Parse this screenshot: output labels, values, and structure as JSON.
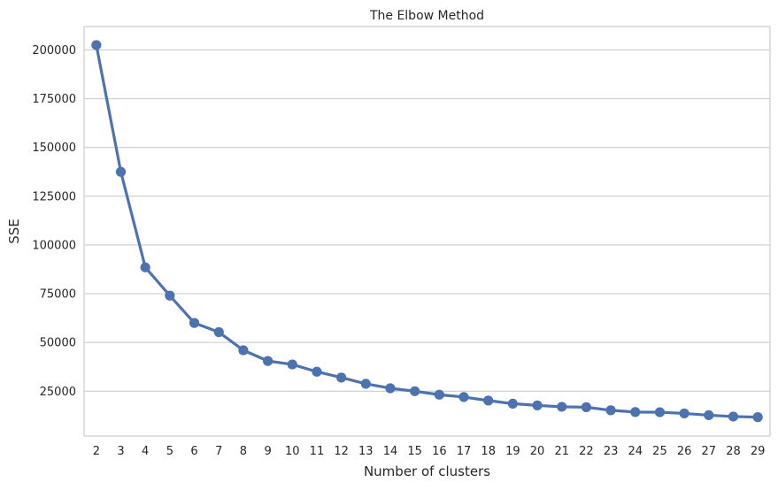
{
  "chart_data": {
    "type": "line",
    "title": "The Elbow Method",
    "xlabel": "Number of clusters",
    "ylabel": "SSE",
    "x": [
      2,
      3,
      4,
      5,
      6,
      7,
      8,
      9,
      10,
      11,
      12,
      13,
      14,
      15,
      16,
      17,
      18,
      19,
      20,
      21,
      22,
      23,
      24,
      25,
      26,
      27,
      28,
      29
    ],
    "y": [
      202500,
      137500,
      88500,
      74000,
      60000,
      55300,
      46000,
      40500,
      38700,
      35000,
      32000,
      28800,
      26500,
      25000,
      23200,
      22000,
      20200,
      18600,
      17700,
      17000,
      16800,
      15200,
      14300,
      14200,
      13600,
      12700,
      12000,
      11700
    ],
    "ylim": [
      2000,
      212000
    ],
    "yticks": [
      25000,
      50000,
      75000,
      100000,
      125000,
      150000,
      175000,
      200000
    ],
    "grid": "horizontal",
    "colors": {
      "line": "#4c72b0",
      "grid": "#cccccc",
      "spine": "#cccccc",
      "text": "#262626"
    }
  }
}
